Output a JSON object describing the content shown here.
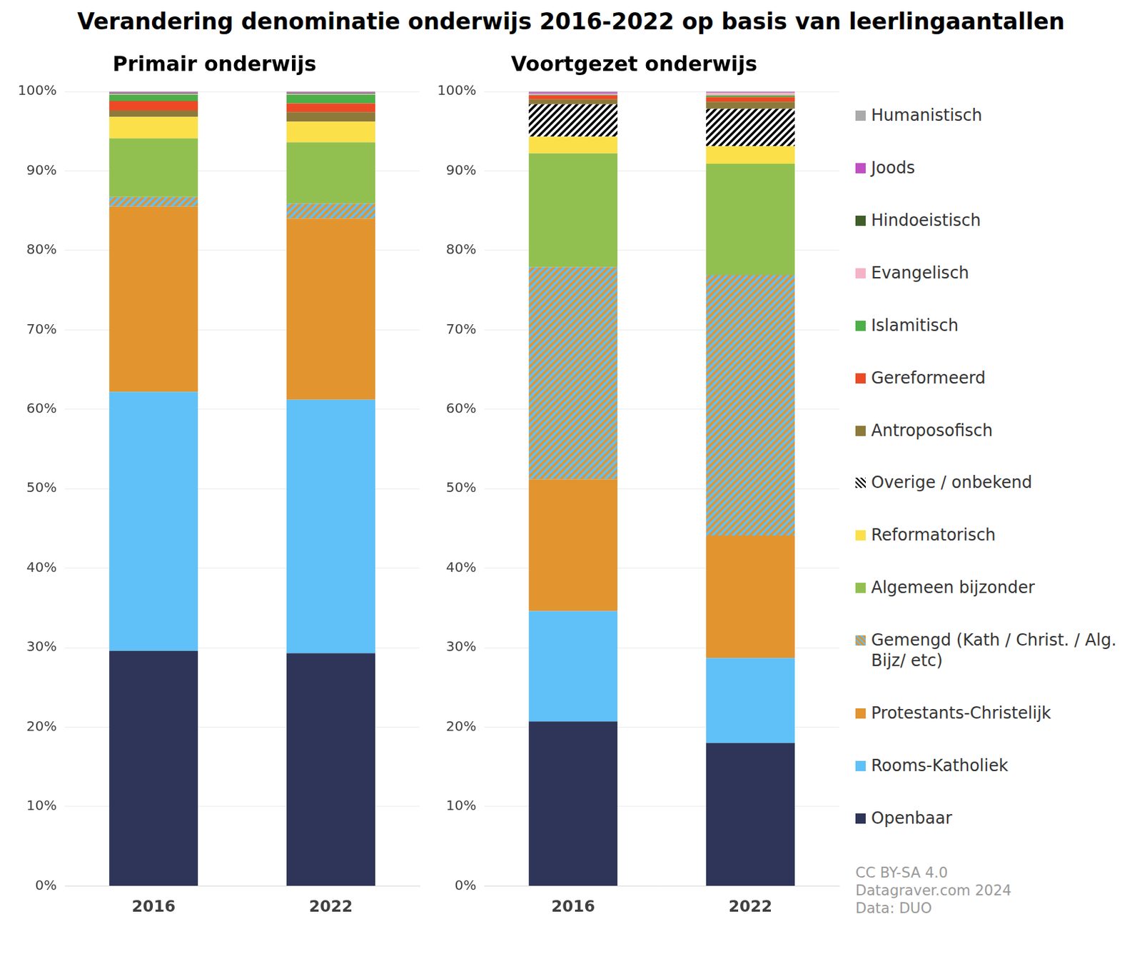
{
  "title": "Verandering denominatie onderwijs 2016-2022 op basis van leerlingaantallen",
  "credits": [
    "CC BY-SA 4.0",
    "Datagraver.com 2024",
    "Data: DUO"
  ],
  "chart_data": [
    {
      "type": "bar",
      "title": "Primair onderwijs",
      "stacked": true,
      "grid": true,
      "categories": [
        "2016",
        "2022"
      ],
      "ylim": [
        0,
        100
      ],
      "yticks": [
        {
          "value": 0,
          "label": "0%"
        },
        {
          "value": 10,
          "label": "10%"
        },
        {
          "value": 20,
          "label": "20%"
        },
        {
          "value": 30,
          "label": "30%"
        },
        {
          "value": 40,
          "label": "40%"
        },
        {
          "value": 50,
          "label": "50%"
        },
        {
          "value": 60,
          "label": "60%"
        },
        {
          "value": 70,
          "label": "70%"
        },
        {
          "value": 80,
          "label": "80%"
        },
        {
          "value": 90,
          "label": "90%"
        },
        {
          "value": 100,
          "label": "100%"
        }
      ],
      "series": [
        {
          "name": "Openbaar",
          "color": "#2e3558",
          "values": [
            29.6,
            29.3
          ]
        },
        {
          "name": "Rooms-Katholiek",
          "color": "#5fc1f7",
          "values": [
            32.6,
            31.9
          ]
        },
        {
          "name": "Protestants-Christelijk",
          "color": "#e2942f",
          "values": [
            23.3,
            22.8
          ]
        },
        {
          "name": "Gemengd (Kath / Christ. / Alg. Bijz/ etc)",
          "color": [
            "#5fc1f7",
            "#e2942f"
          ],
          "values": [
            1.2,
            1.9
          ]
        },
        {
          "name": "Algemeen bijzonder",
          "color": "#92c050",
          "values": [
            7.4,
            7.7
          ]
        },
        {
          "name": "Reformatorisch",
          "color": "#fbe04a",
          "values": [
            2.7,
            2.6
          ]
        },
        {
          "name": "Overige / onbekend",
          "color": [
            "#000000",
            "#ffffff"
          ],
          "values": [
            0,
            0
          ]
        },
        {
          "name": "Antroposofisch",
          "color": "#8d7a3a",
          "values": [
            0.8,
            1.2
          ]
        },
        {
          "name": "Gereformeerd",
          "color": "#ec4a26",
          "values": [
            1.2,
            1.1
          ]
        },
        {
          "name": "Islamitisch",
          "color": "#4caf48",
          "values": [
            0.8,
            1.1
          ]
        },
        {
          "name": "Evangelisch",
          "color": "#f6b3c7",
          "values": [
            0.1,
            0.1
          ]
        },
        {
          "name": "Hindoeistisch",
          "color": "#3f5e2a",
          "values": [
            0.1,
            0.1
          ]
        },
        {
          "name": "Joods",
          "color": "#c04fc4",
          "values": [
            0.1,
            0.1
          ]
        },
        {
          "name": "Humanistisch",
          "color": "#aaaaaa",
          "values": [
            0.1,
            0.1
          ]
        }
      ]
    },
    {
      "type": "bar",
      "title": "Voortgezet onderwijs",
      "stacked": true,
      "grid": true,
      "legend": "right",
      "categories": [
        "2016",
        "2022"
      ],
      "ylim": [
        0,
        100
      ],
      "yticks": [
        {
          "value": 0,
          "label": "0%"
        },
        {
          "value": 10,
          "label": "10%"
        },
        {
          "value": 20,
          "label": "20%"
        },
        {
          "value": 30,
          "label": "30%"
        },
        {
          "value": 40,
          "label": "40%"
        },
        {
          "value": 50,
          "label": "50%"
        },
        {
          "value": 60,
          "label": "60%"
        },
        {
          "value": 70,
          "label": "70%"
        },
        {
          "value": 80,
          "label": "80%"
        },
        {
          "value": 90,
          "label": "90%"
        },
        {
          "value": 100,
          "label": "100%"
        }
      ],
      "series": [
        {
          "name": "Openbaar",
          "color": "#2e3558",
          "values": [
            20.7,
            18.0
          ]
        },
        {
          "name": "Rooms-Katholiek",
          "color": "#5fc1f7",
          "values": [
            13.9,
            10.7
          ]
        },
        {
          "name": "Protestants-Christelijk",
          "color": "#e2942f",
          "values": [
            16.6,
            15.4
          ]
        },
        {
          "name": "Gemengd (Kath / Christ. / Alg. Bijz/ etc)",
          "color": [
            "#5fc1f7",
            "#e2942f"
          ],
          "values": [
            26.7,
            32.8
          ]
        },
        {
          "name": "Algemeen bijzonder",
          "color": "#92c050",
          "values": [
            14.3,
            14.0
          ]
        },
        {
          "name": "Reformatorisch",
          "color": "#fbe04a",
          "values": [
            2.1,
            2.2
          ]
        },
        {
          "name": "Overige / onbekend",
          "color": [
            "#000000",
            "#ffffff"
          ],
          "values": [
            4.1,
            4.7
          ]
        },
        {
          "name": "Antroposofisch",
          "color": "#8d7a3a",
          "values": [
            0.6,
            0.9
          ]
        },
        {
          "name": "Gereformeerd",
          "color": "#ec4a26",
          "values": [
            0.5,
            0.6
          ]
        },
        {
          "name": "Islamitisch",
          "color": "#4caf48",
          "values": [
            0.1,
            0.2
          ]
        },
        {
          "name": "Evangelisch",
          "color": "#f6b3c7",
          "values": [
            0.1,
            0.3
          ]
        },
        {
          "name": "Hindoeistisch",
          "color": "#3f5e2a",
          "values": [
            0.0,
            0.0
          ]
        },
        {
          "name": "Joods",
          "color": "#c04fc4",
          "values": [
            0.2,
            0.1
          ]
        },
        {
          "name": "Humanistisch",
          "color": "#aaaaaa",
          "values": [
            0.1,
            0.1
          ]
        }
      ]
    }
  ]
}
